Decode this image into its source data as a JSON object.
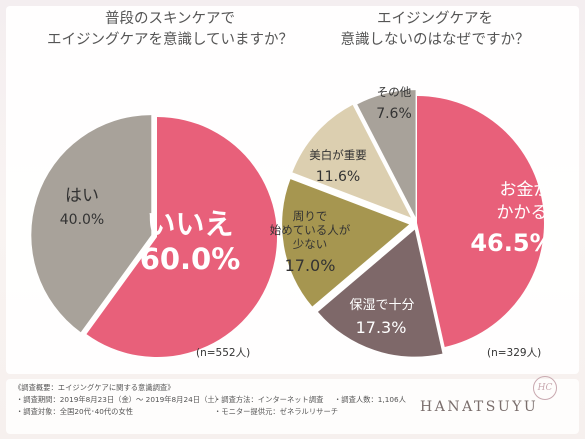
{
  "titles": {
    "left": [
      "普段のスキンケアで",
      "エイジングケアを意識していますか？"
    ],
    "right": [
      "エイジングケアを",
      "意識しないのはなぜですか？"
    ]
  },
  "chart_data": [
    {
      "type": "pie",
      "title": "普段のスキンケアでエイジングケアを意識していますか？",
      "slices": [
        {
          "label": "いいえ",
          "value": 60.0,
          "display": "60.0%",
          "color": "#e8607a"
        },
        {
          "label": "はい",
          "value": 40.0,
          "display": "40.0%",
          "color": "#a8a29a"
        }
      ],
      "note": "(n=552人)"
    },
    {
      "type": "pie",
      "title": "エイジングケアを意識しないのはなぜですか？",
      "slices": [
        {
          "label": "お金がかかる",
          "value": 46.5,
          "display": "46.5%",
          "color": "#e8607a"
        },
        {
          "label": "保湿で十分",
          "value": 17.3,
          "display": "17.3%",
          "color": "#7e6869"
        },
        {
          "label": "周りで始めている人が少ない",
          "value": 17.0,
          "display": "17.0%",
          "color": "#a69650"
        },
        {
          "label": "美白が重要",
          "value": 11.6,
          "display": "11.6%",
          "color": "#dccfb0"
        },
        {
          "label": "その他",
          "value": 7.6,
          "display": "7.6%",
          "color": "#a8a29a"
        }
      ],
      "note": "(n=329人)"
    }
  ],
  "slice_text": {
    "iie": "いいえ",
    "iie_pct": "60.0%",
    "hai": "はい",
    "hai_pct": "40.0%",
    "okane_1": "お金が",
    "okane_2": "かかる",
    "okane_pct": "46.5%",
    "hoshitsu": "保湿で十分",
    "hoshitsu_pct": "17.3%",
    "mawari_1": "周りで",
    "mawari_2": "始めている人が",
    "mawari_3": "少ない",
    "mawari_pct": "17.0%",
    "bihaku": "美白が重要",
    "bihaku_pct": "11.6%",
    "sonota": "その他",
    "sonota_pct": "7.6%"
  },
  "notes": {
    "left": "(n=552人)",
    "right": "(n=329人)"
  },
  "footer": {
    "heading": "《調査概要：エイジングケアに関する意識調査》",
    "period": "・調査期間：2019年8月23日（金）～ 2019年8月24日（土）",
    "method": "・調査方法：インターネット調査",
    "count": "・調査人数：1,106人",
    "target": "・調査対象：全国20代･40代の女性",
    "provider": "・モニター提供元：ゼネラルリサーチ",
    "brand": "HANATSUYU",
    "logo": "HC"
  }
}
